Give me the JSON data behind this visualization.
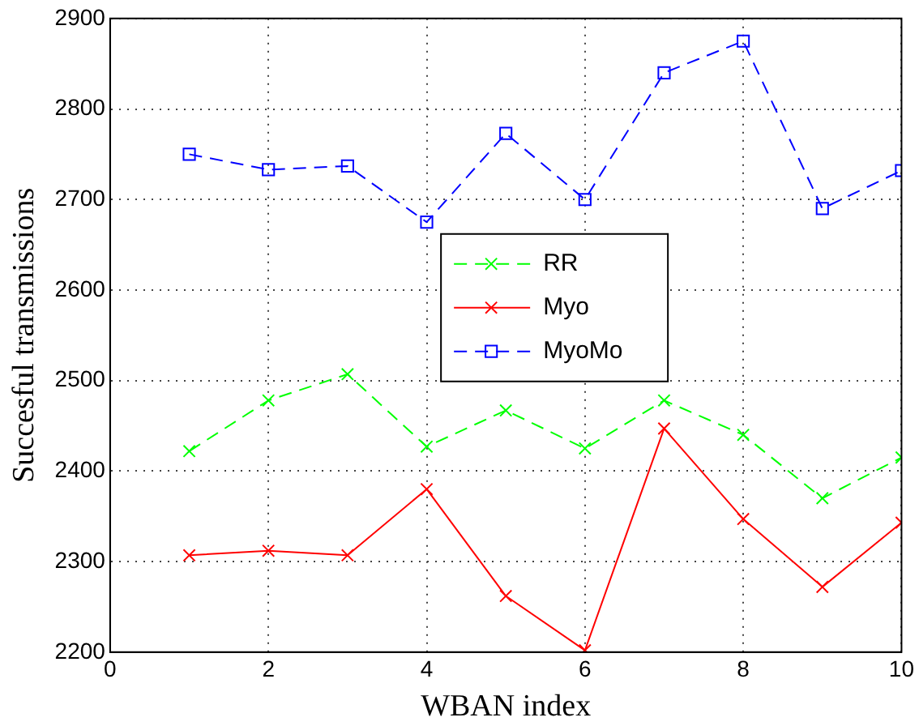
{
  "chart_data": {
    "type": "line",
    "xlabel": "WBAN index",
    "ylabel": "Succesful transmissions",
    "x": [
      1,
      2,
      3,
      4,
      5,
      6,
      7,
      8,
      9,
      10
    ],
    "series": [
      {
        "name": "RR",
        "color": "#00ff00",
        "marker": "cross",
        "line_style": "dashed",
        "values": [
          2422,
          2478,
          2507,
          2427,
          2467,
          2425,
          2478,
          2440,
          2370,
          2415
        ]
      },
      {
        "name": "Myo",
        "color": "#ff0000",
        "marker": "cross",
        "line_style": "solid",
        "values": [
          2307,
          2312,
          2307,
          2380,
          2262,
          2202,
          2447,
          2347,
          2272,
          2343
        ]
      },
      {
        "name": "MyoMo",
        "color": "#0000ff",
        "marker": "square",
        "line_style": "dashed",
        "values": [
          2750,
          2733,
          2737,
          2675,
          2773,
          2700,
          2840,
          2875,
          2690,
          2732
        ]
      }
    ],
    "xlim": [
      0,
      10
    ],
    "xticks": [
      0,
      2,
      4,
      6,
      8,
      10
    ],
    "ylim": [
      2200,
      2900
    ],
    "yticks": [
      2200,
      2300,
      2400,
      2500,
      2600,
      2700,
      2800,
      2900
    ],
    "grid": true,
    "legend": "center"
  }
}
